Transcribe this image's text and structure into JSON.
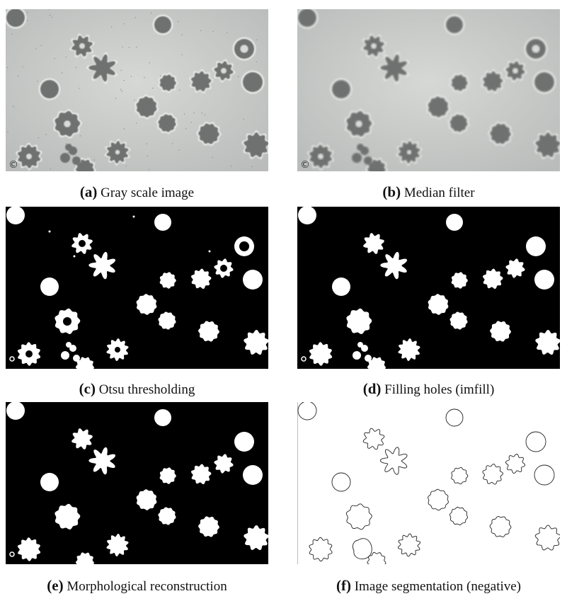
{
  "figures": [
    {
      "id": "a",
      "label": "(a)",
      "caption": "Gray scale image",
      "style": "gray"
    },
    {
      "id": "b",
      "label": "(b)",
      "caption": "Median filter",
      "style": "gray-smooth"
    },
    {
      "id": "c",
      "label": "(c)",
      "caption": "Otsu thresholding",
      "style": "binary-holes"
    },
    {
      "id": "d",
      "label": "(d)",
      "caption": "Filling holes (imfill)",
      "style": "binary-filled"
    },
    {
      "id": "e",
      "label": "(e)",
      "caption": "Morphological reconstruction",
      "style": "binary-filled"
    },
    {
      "id": "f",
      "label": "(f)",
      "caption": "Image segmentation (negative)",
      "style": "outline"
    }
  ],
  "watermark": "©",
  "colors": {
    "gray_bg": "#c9cbc9",
    "cell_dark": "#6e716f",
    "binary_bg": "#000000",
    "binary_fg": "#ffffff",
    "outline_stroke": "#222222"
  }
}
